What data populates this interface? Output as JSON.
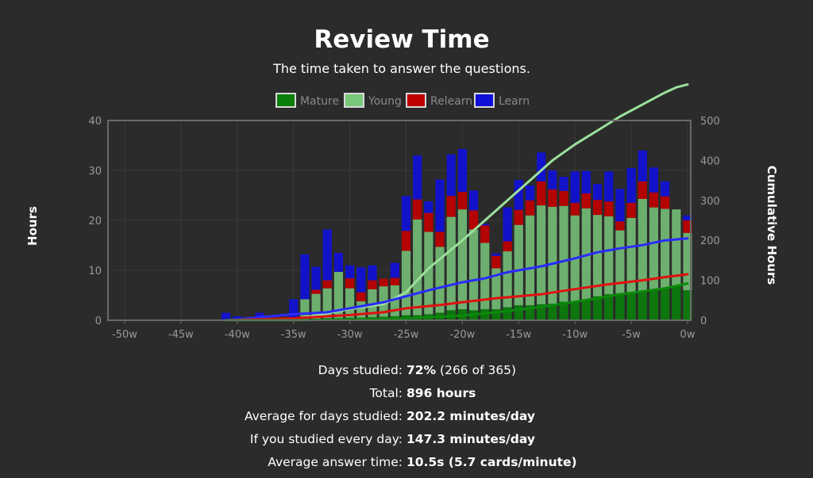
{
  "header": {
    "title": "Review Time",
    "subtitle": "The time taken to answer the questions."
  },
  "colors": {
    "background": "#2b2b2b",
    "mature": "#0b7d0b",
    "young": "#79c77b",
    "relearn": "#c00000",
    "learn": "#1010d8"
  },
  "chart_data": {
    "type": "bar",
    "stacked": true,
    "title": "Review Time",
    "subtitle": "The time taken to answer the questions.",
    "ylabel": "Hours",
    "y2label": "Cumulative Hours",
    "ylim": [
      0,
      40
    ],
    "y2lim": [
      0,
      500
    ],
    "yticks": [
      "0",
      "10",
      "20",
      "30",
      "40"
    ],
    "y2ticks": [
      "0",
      "100",
      "200",
      "300",
      "400",
      "500"
    ],
    "xlim": [
      -52,
      0
    ],
    "xticks": [
      {
        "value": -50,
        "label": "-50w"
      },
      {
        "value": -45,
        "label": "-45w"
      },
      {
        "value": -40,
        "label": "-40w"
      },
      {
        "value": -35,
        "label": "-35w"
      },
      {
        "value": -30,
        "label": "-30w"
      },
      {
        "value": -25,
        "label": "-25w"
      },
      {
        "value": -20,
        "label": "-20w"
      },
      {
        "value": -15,
        "label": "-15w"
      },
      {
        "value": -10,
        "label": "-10w"
      },
      {
        "value": -5,
        "label": "-5w"
      },
      {
        "value": 0,
        "label": "0w"
      }
    ],
    "grid": true,
    "legend_position": "top-center",
    "weeks": [
      -41,
      -40,
      -39,
      -38,
      -37,
      -36,
      -35,
      -34,
      -33,
      -32,
      -31,
      -30,
      -29,
      -28,
      -27,
      -26,
      -25,
      -24,
      -23,
      -22,
      -21,
      -20,
      -19,
      -18,
      -17,
      -16,
      -15,
      -14,
      -13,
      -12,
      -11,
      -10,
      -9,
      -8,
      -7,
      -6,
      -5,
      -4,
      -3,
      -2,
      -1,
      0
    ],
    "series": [
      {
        "name": "Mature",
        "key": "mature",
        "values": [
          0,
          0,
          0,
          0,
          0,
          0,
          0.1,
          0.2,
          0.3,
          0.4,
          0.4,
          0.5,
          0.5,
          0.6,
          0.7,
          0.8,
          1.0,
          1.0,
          1.2,
          1.5,
          2.0,
          2.2,
          2.0,
          2.2,
          2.2,
          2.6,
          3.0,
          3.0,
          3.2,
          3.3,
          3.7,
          3.8,
          4.2,
          4.8,
          5.2,
          5.4,
          5.5,
          5.8,
          6.0,
          6.3,
          6.8,
          6.0
        ]
      },
      {
        "name": "Young",
        "key": "young",
        "values": [
          0,
          0,
          0,
          0,
          0,
          0,
          0.3,
          4.0,
          5.0,
          6.0,
          9.3,
          5.9,
          3.3,
          5.6,
          6.1,
          6.2,
          12.9,
          19.2,
          16.5,
          13.2,
          18.7,
          20.0,
          16.2,
          13.3,
          8.2,
          11.2,
          16.1,
          18.0,
          19.8,
          19.4,
          19.2,
          17.2,
          18.2,
          16.3,
          15.6,
          12.6,
          15.0,
          18.5,
          16.6,
          16.0,
          15.4,
          11.5
        ]
      },
      {
        "name": "Relearn",
        "key": "relearn",
        "values": [
          0,
          0,
          0,
          0,
          0,
          0,
          0,
          0,
          0.8,
          1.6,
          0,
          2.0,
          1.8,
          1.8,
          1.5,
          1.5,
          4.0,
          4.0,
          3.8,
          3.0,
          4.2,
          3.5,
          3.8,
          3.5,
          2.5,
          2.0,
          3.0,
          3.0,
          4.8,
          3.5,
          3.0,
          2.5,
          3.0,
          3.0,
          3.0,
          1.8,
          3.0,
          3.5,
          3.0,
          2.5,
          0,
          2.5
        ]
      },
      {
        "name": "Learn",
        "key": "learn",
        "values": [
          1.5,
          0.8,
          0,
          1.5,
          0,
          0.5,
          3.8,
          9.0,
          4.6,
          10.2,
          3.8,
          2.6,
          5.0,
          3.0,
          0,
          3.0,
          7.0,
          8.8,
          2.3,
          10.5,
          8.3,
          8.6,
          4.0,
          0.3,
          0.5,
          6.8,
          6.0,
          3.0,
          5.8,
          3.8,
          2.8,
          6.3,
          4.5,
          3.2,
          6.0,
          6.5,
          7.0,
          6.2,
          5.0,
          3.0,
          0,
          1.0
        ]
      }
    ],
    "cumulative": [
      {
        "key": "young",
        "points": [
          [
            -41,
            0
          ],
          [
            -35,
            3
          ],
          [
            -33,
            12
          ],
          [
            -30,
            28
          ],
          [
            -27,
            40
          ],
          [
            -25,
            70
          ],
          [
            -23,
            130
          ],
          [
            -20,
            200
          ],
          [
            -18,
            250
          ],
          [
            -16,
            300
          ],
          [
            -14,
            350
          ],
          [
            -12,
            400
          ],
          [
            -10,
            440
          ],
          [
            -8,
            475
          ],
          [
            -6,
            510
          ],
          [
            -4,
            540
          ],
          [
            -2,
            570
          ],
          [
            -1,
            583
          ],
          [
            0,
            590
          ]
        ]
      },
      {
        "key": "learn",
        "points": [
          [
            -41,
            0
          ],
          [
            -35,
            15
          ],
          [
            -32,
            20
          ],
          [
            -29,
            35
          ],
          [
            -27,
            45
          ],
          [
            -25,
            60
          ],
          [
            -23,
            75
          ],
          [
            -20,
            95
          ],
          [
            -18,
            105
          ],
          [
            -16,
            120
          ],
          [
            -13,
            135
          ],
          [
            -10,
            155
          ],
          [
            -8,
            170
          ],
          [
            -6,
            180
          ],
          [
            -4,
            188
          ],
          [
            -2,
            200
          ],
          [
            0,
            205
          ]
        ]
      },
      {
        "key": "relearn",
        "points": [
          [
            -41,
            0
          ],
          [
            -35,
            5
          ],
          [
            -32,
            10
          ],
          [
            -30,
            13
          ],
          [
            -27,
            20
          ],
          [
            -25,
            30
          ],
          [
            -22,
            38
          ],
          [
            -20,
            45
          ],
          [
            -17,
            55
          ],
          [
            -13,
            65
          ],
          [
            -10,
            78
          ],
          [
            -7,
            90
          ],
          [
            -4,
            100
          ],
          [
            -2,
            108
          ],
          [
            0,
            115
          ]
        ]
      },
      {
        "key": "mature",
        "points": [
          [
            -41,
            0
          ],
          [
            -35,
            0
          ],
          [
            -30,
            2
          ],
          [
            -25,
            5
          ],
          [
            -20,
            12
          ],
          [
            -17,
            20
          ],
          [
            -14,
            30
          ],
          [
            -11,
            42
          ],
          [
            -8,
            55
          ],
          [
            -6,
            65
          ],
          [
            -4,
            72
          ],
          [
            -2,
            80
          ],
          [
            0,
            92
          ]
        ]
      }
    ]
  },
  "stats": [
    {
      "label": "Days studied:",
      "bold": "72%",
      "rest": " (266 of 365)"
    },
    {
      "label": "Total:",
      "bold": "896 hours",
      "rest": ""
    },
    {
      "label": "Average for days studied:",
      "bold": "202.2 minutes/day",
      "rest": ""
    },
    {
      "label": "If you studied every day:",
      "bold": "147.3 minutes/day",
      "rest": ""
    },
    {
      "label": "Average answer time:",
      "bold": "10.5s (5.7 cards/minute)",
      "rest": ""
    }
  ]
}
